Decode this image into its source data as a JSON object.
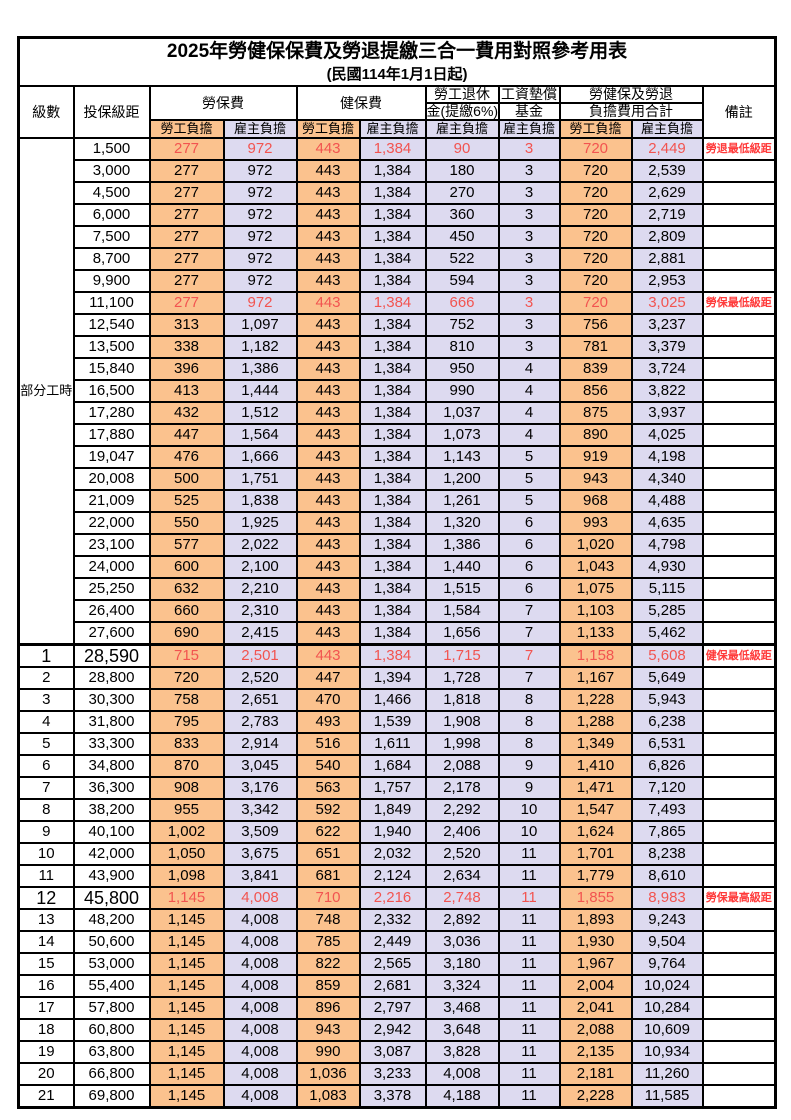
{
  "title": "2025年勞健保保費及勞退提繳三合一費用對照參考用表",
  "subtitle": "(民國114年1月1日起)",
  "header": {
    "level": "級數",
    "bracket": "投保級距",
    "labor_ins": "勞保費",
    "health_ins": "健保費",
    "pension_line1": "勞工退休",
    "pension_line2": "金(提繳6%)",
    "wage_fund_line1": "工資墊償",
    "wage_fund_line2": "基金",
    "total_line1": "勞健保及勞退",
    "total_line2": "負擔費用合計",
    "remark": "備註",
    "sub_headers": [
      {
        "label": "勞工負擔",
        "type": "emp"
      },
      {
        "label": "雇主負擔",
        "type": "er"
      },
      {
        "label": "勞工負擔",
        "type": "emp"
      },
      {
        "label": "雇主負擔",
        "type": "er"
      },
      {
        "label": "雇主負擔",
        "type": "er"
      },
      {
        "label": "雇主負擔",
        "type": "er"
      },
      {
        "label": "勞工負擔",
        "type": "emp"
      },
      {
        "label": "雇主負擔",
        "type": "er"
      }
    ],
    "column_types": [
      "emp",
      "er",
      "emp",
      "er",
      "er",
      "er",
      "emp",
      "er"
    ]
  },
  "colors": {
    "employee_bg": "#FBC28E",
    "employer_bg": "#DDDAF0",
    "value_red": "#F25450",
    "remark_red": "#FF3B3B",
    "border": "#000000"
  },
  "group_label": "部分工時",
  "group_rowspan": 23,
  "rows": [
    {
      "level": "",
      "bracket": "1,500",
      "values": [
        "277",
        "972",
        "443",
        "1,384",
        "90",
        "3",
        "720",
        "2,449"
      ],
      "remark": "勞退最低級距",
      "highlight": true,
      "large": false,
      "thick_top": false
    },
    {
      "level": "",
      "bracket": "3,000",
      "values": [
        "277",
        "972",
        "443",
        "1,384",
        "180",
        "3",
        "720",
        "2,539"
      ],
      "remark": "",
      "highlight": false,
      "large": false,
      "thick_top": false
    },
    {
      "level": "",
      "bracket": "4,500",
      "values": [
        "277",
        "972",
        "443",
        "1,384",
        "270",
        "3",
        "720",
        "2,629"
      ],
      "remark": "",
      "highlight": false,
      "large": false,
      "thick_top": false
    },
    {
      "level": "",
      "bracket": "6,000",
      "values": [
        "277",
        "972",
        "443",
        "1,384",
        "360",
        "3",
        "720",
        "2,719"
      ],
      "remark": "",
      "highlight": false,
      "large": false,
      "thick_top": false
    },
    {
      "level": "",
      "bracket": "7,500",
      "values": [
        "277",
        "972",
        "443",
        "1,384",
        "450",
        "3",
        "720",
        "2,809"
      ],
      "remark": "",
      "highlight": false,
      "large": false,
      "thick_top": false
    },
    {
      "level": "",
      "bracket": "8,700",
      "values": [
        "277",
        "972",
        "443",
        "1,384",
        "522",
        "3",
        "720",
        "2,881"
      ],
      "remark": "",
      "highlight": false,
      "large": false,
      "thick_top": false
    },
    {
      "level": "",
      "bracket": "9,900",
      "values": [
        "277",
        "972",
        "443",
        "1,384",
        "594",
        "3",
        "720",
        "2,953"
      ],
      "remark": "",
      "highlight": false,
      "large": false,
      "thick_top": false
    },
    {
      "level": "",
      "bracket": "11,100",
      "values": [
        "277",
        "972",
        "443",
        "1,384",
        "666",
        "3",
        "720",
        "3,025"
      ],
      "remark": "勞保最低級距",
      "highlight": true,
      "large": false,
      "thick_top": false
    },
    {
      "level": "",
      "bracket": "12,540",
      "values": [
        "313",
        "1,097",
        "443",
        "1,384",
        "752",
        "3",
        "756",
        "3,237"
      ],
      "remark": "",
      "highlight": false,
      "large": false,
      "thick_top": false
    },
    {
      "level": "",
      "bracket": "13,500",
      "values": [
        "338",
        "1,182",
        "443",
        "1,384",
        "810",
        "3",
        "781",
        "3,379"
      ],
      "remark": "",
      "highlight": false,
      "large": false,
      "thick_top": false
    },
    {
      "level": "",
      "bracket": "15,840",
      "values": [
        "396",
        "1,386",
        "443",
        "1,384",
        "950",
        "4",
        "839",
        "3,724"
      ],
      "remark": "",
      "highlight": false,
      "large": false,
      "thick_top": false
    },
    {
      "level": "",
      "bracket": "16,500",
      "values": [
        "413",
        "1,444",
        "443",
        "1,384",
        "990",
        "4",
        "856",
        "3,822"
      ],
      "remark": "",
      "highlight": false,
      "large": false,
      "thick_top": false
    },
    {
      "level": "",
      "bracket": "17,280",
      "values": [
        "432",
        "1,512",
        "443",
        "1,384",
        "1,037",
        "4",
        "875",
        "3,937"
      ],
      "remark": "",
      "highlight": false,
      "large": false,
      "thick_top": false
    },
    {
      "level": "",
      "bracket": "17,880",
      "values": [
        "447",
        "1,564",
        "443",
        "1,384",
        "1,073",
        "4",
        "890",
        "4,025"
      ],
      "remark": "",
      "highlight": false,
      "large": false,
      "thick_top": false
    },
    {
      "level": "",
      "bracket": "19,047",
      "values": [
        "476",
        "1,666",
        "443",
        "1,384",
        "1,143",
        "5",
        "919",
        "4,198"
      ],
      "remark": "",
      "highlight": false,
      "large": false,
      "thick_top": false
    },
    {
      "level": "",
      "bracket": "20,008",
      "values": [
        "500",
        "1,751",
        "443",
        "1,384",
        "1,200",
        "5",
        "943",
        "4,340"
      ],
      "remark": "",
      "highlight": false,
      "large": false,
      "thick_top": false
    },
    {
      "level": "",
      "bracket": "21,009",
      "values": [
        "525",
        "1,838",
        "443",
        "1,384",
        "1,261",
        "5",
        "968",
        "4,488"
      ],
      "remark": "",
      "highlight": false,
      "large": false,
      "thick_top": false
    },
    {
      "level": "",
      "bracket": "22,000",
      "values": [
        "550",
        "1,925",
        "443",
        "1,384",
        "1,320",
        "6",
        "993",
        "4,635"
      ],
      "remark": "",
      "highlight": false,
      "large": false,
      "thick_top": false
    },
    {
      "level": "",
      "bracket": "23,100",
      "values": [
        "577",
        "2,022",
        "443",
        "1,384",
        "1,386",
        "6",
        "1,020",
        "4,798"
      ],
      "remark": "",
      "highlight": false,
      "large": false,
      "thick_top": false
    },
    {
      "level": "",
      "bracket": "24,000",
      "values": [
        "600",
        "2,100",
        "443",
        "1,384",
        "1,440",
        "6",
        "1,043",
        "4,930"
      ],
      "remark": "",
      "highlight": false,
      "large": false,
      "thick_top": false
    },
    {
      "level": "",
      "bracket": "25,250",
      "values": [
        "632",
        "2,210",
        "443",
        "1,384",
        "1,515",
        "6",
        "1,075",
        "5,115"
      ],
      "remark": "",
      "highlight": false,
      "large": false,
      "thick_top": false
    },
    {
      "level": "",
      "bracket": "26,400",
      "values": [
        "660",
        "2,310",
        "443",
        "1,384",
        "1,584",
        "7",
        "1,103",
        "5,285"
      ],
      "remark": "",
      "highlight": false,
      "large": false,
      "thick_top": false
    },
    {
      "level": "",
      "bracket": "27,600",
      "values": [
        "690",
        "2,415",
        "443",
        "1,384",
        "1,656",
        "7",
        "1,133",
        "5,462"
      ],
      "remark": "",
      "highlight": false,
      "large": false,
      "thick_top": false
    },
    {
      "level": "1",
      "bracket": "28,590",
      "values": [
        "715",
        "2,501",
        "443",
        "1,384",
        "1,715",
        "7",
        "1,158",
        "5,608"
      ],
      "remark": "健保最低級距",
      "highlight": true,
      "large": true,
      "thick_top": true
    },
    {
      "level": "2",
      "bracket": "28,800",
      "values": [
        "720",
        "2,520",
        "447",
        "1,394",
        "1,728",
        "7",
        "1,167",
        "5,649"
      ],
      "remark": "",
      "highlight": false,
      "large": false,
      "thick_top": false
    },
    {
      "level": "3",
      "bracket": "30,300",
      "values": [
        "758",
        "2,651",
        "470",
        "1,466",
        "1,818",
        "8",
        "1,228",
        "5,943"
      ],
      "remark": "",
      "highlight": false,
      "large": false,
      "thick_top": false
    },
    {
      "level": "4",
      "bracket": "31,800",
      "values": [
        "795",
        "2,783",
        "493",
        "1,539",
        "1,908",
        "8",
        "1,288",
        "6,238"
      ],
      "remark": "",
      "highlight": false,
      "large": false,
      "thick_top": false
    },
    {
      "level": "5",
      "bracket": "33,300",
      "values": [
        "833",
        "2,914",
        "516",
        "1,611",
        "1,998",
        "8",
        "1,349",
        "6,531"
      ],
      "remark": "",
      "highlight": false,
      "large": false,
      "thick_top": false
    },
    {
      "level": "6",
      "bracket": "34,800",
      "values": [
        "870",
        "3,045",
        "540",
        "1,684",
        "2,088",
        "9",
        "1,410",
        "6,826"
      ],
      "remark": "",
      "highlight": false,
      "large": false,
      "thick_top": false
    },
    {
      "level": "7",
      "bracket": "36,300",
      "values": [
        "908",
        "3,176",
        "563",
        "1,757",
        "2,178",
        "9",
        "1,471",
        "7,120"
      ],
      "remark": "",
      "highlight": false,
      "large": false,
      "thick_top": false
    },
    {
      "level": "8",
      "bracket": "38,200",
      "values": [
        "955",
        "3,342",
        "592",
        "1,849",
        "2,292",
        "10",
        "1,547",
        "7,493"
      ],
      "remark": "",
      "highlight": false,
      "large": false,
      "thick_top": false
    },
    {
      "level": "9",
      "bracket": "40,100",
      "values": [
        "1,002",
        "3,509",
        "622",
        "1,940",
        "2,406",
        "10",
        "1,624",
        "7,865"
      ],
      "remark": "",
      "highlight": false,
      "large": false,
      "thick_top": false
    },
    {
      "level": "10",
      "bracket": "42,000",
      "values": [
        "1,050",
        "3,675",
        "651",
        "2,032",
        "2,520",
        "11",
        "1,701",
        "8,238"
      ],
      "remark": "",
      "highlight": false,
      "large": false,
      "thick_top": false
    },
    {
      "level": "11",
      "bracket": "43,900",
      "values": [
        "1,098",
        "3,841",
        "681",
        "2,124",
        "2,634",
        "11",
        "1,779",
        "8,610"
      ],
      "remark": "",
      "highlight": false,
      "large": false,
      "thick_top": false
    },
    {
      "level": "12",
      "bracket": "45,800",
      "values": [
        "1,145",
        "4,008",
        "710",
        "2,216",
        "2,748",
        "11",
        "1,855",
        "8,983"
      ],
      "remark": "勞保最高級距",
      "highlight": true,
      "large": true,
      "thick_top": false
    },
    {
      "level": "13",
      "bracket": "48,200",
      "values": [
        "1,145",
        "4,008",
        "748",
        "2,332",
        "2,892",
        "11",
        "1,893",
        "9,243"
      ],
      "remark": "",
      "highlight": false,
      "large": false,
      "thick_top": false
    },
    {
      "level": "14",
      "bracket": "50,600",
      "values": [
        "1,145",
        "4,008",
        "785",
        "2,449",
        "3,036",
        "11",
        "1,930",
        "9,504"
      ],
      "remark": "",
      "highlight": false,
      "large": false,
      "thick_top": false
    },
    {
      "level": "15",
      "bracket": "53,000",
      "values": [
        "1,145",
        "4,008",
        "822",
        "2,565",
        "3,180",
        "11",
        "1,967",
        "9,764"
      ],
      "remark": "",
      "highlight": false,
      "large": false,
      "thick_top": false
    },
    {
      "level": "16",
      "bracket": "55,400",
      "values": [
        "1,145",
        "4,008",
        "859",
        "2,681",
        "3,324",
        "11",
        "2,004",
        "10,024"
      ],
      "remark": "",
      "highlight": false,
      "large": false,
      "thick_top": false
    },
    {
      "level": "17",
      "bracket": "57,800",
      "values": [
        "1,145",
        "4,008",
        "896",
        "2,797",
        "3,468",
        "11",
        "2,041",
        "10,284"
      ],
      "remark": "",
      "highlight": false,
      "large": false,
      "thick_top": false
    },
    {
      "level": "18",
      "bracket": "60,800",
      "values": [
        "1,145",
        "4,008",
        "943",
        "2,942",
        "3,648",
        "11",
        "2,088",
        "10,609"
      ],
      "remark": "",
      "highlight": false,
      "large": false,
      "thick_top": false
    },
    {
      "level": "19",
      "bracket": "63,800",
      "values": [
        "1,145",
        "4,008",
        "990",
        "3,087",
        "3,828",
        "11",
        "2,135",
        "10,934"
      ],
      "remark": "",
      "highlight": false,
      "large": false,
      "thick_top": false
    },
    {
      "level": "20",
      "bracket": "66,800",
      "values": [
        "1,145",
        "4,008",
        "1,036",
        "3,233",
        "4,008",
        "11",
        "2,181",
        "11,260"
      ],
      "remark": "",
      "highlight": false,
      "large": false,
      "thick_top": false
    },
    {
      "level": "21",
      "bracket": "69,800",
      "values": [
        "1,145",
        "4,008",
        "1,083",
        "3,378",
        "4,188",
        "11",
        "2,228",
        "11,585"
      ],
      "remark": "",
      "highlight": false,
      "large": false,
      "thick_top": false
    }
  ]
}
